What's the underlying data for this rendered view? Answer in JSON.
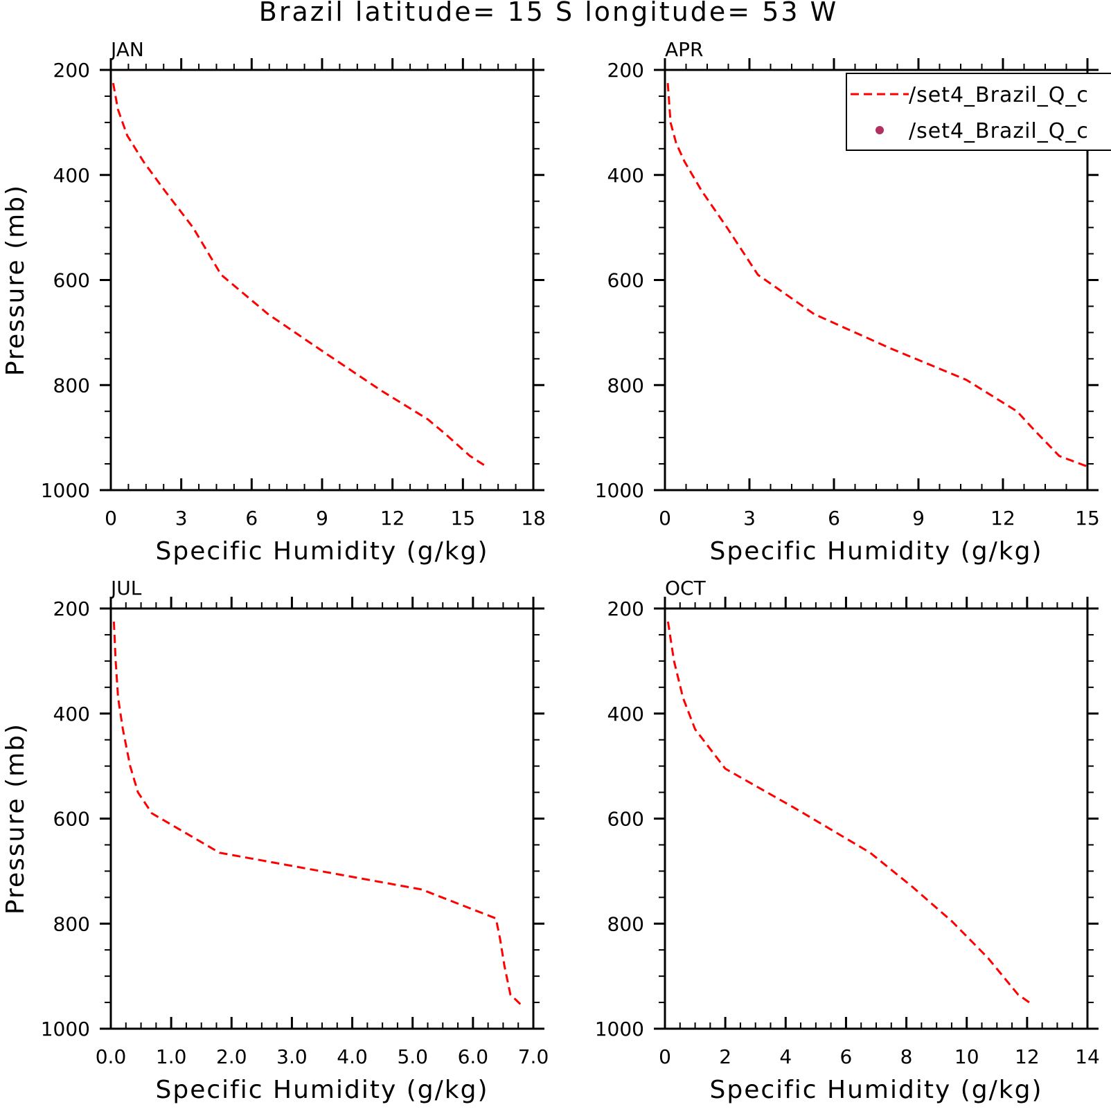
{
  "figure_title": "Brazil  latitude= 15 S longitude= 53 W",
  "legend": {
    "placement": "top-right of APR panel (clipped at right edge)",
    "entries": [
      {
        "label": "/set4_Brazil_Q_c",
        "style": "dashed-line",
        "color": "#ff0000"
      },
      {
        "label": "/set4_Brazil_Q_c",
        "style": "dot-marker",
        "color": "#b03060"
      }
    ]
  },
  "chart_data": [
    {
      "type": "line",
      "panel_label": "JAN",
      "xlabel": "Specific Humidity (g/kg)",
      "ylabel": "Pressure (mb)",
      "xlim": [
        0,
        18
      ],
      "ylim": [
        1000,
        200
      ],
      "y_inverted": true,
      "xticks": [
        "0",
        "3",
        "6",
        "9",
        "12",
        "15",
        "18"
      ],
      "yticks": [
        "200",
        "400",
        "600",
        "800",
        "1000"
      ],
      "series": [
        {
          "color": "#ff0000",
          "dash": "dashed",
          "x": [
            0.1,
            0.3,
            0.7,
            1.4,
            2.3,
            3.5,
            4.7,
            6.7,
            9.0,
            11.5,
            13.5,
            14.3,
            15.3,
            16.0
          ],
          "y": [
            225,
            275,
            325,
            375,
            430,
            500,
            590,
            665,
            735,
            810,
            865,
            895,
            935,
            955
          ]
        }
      ]
    },
    {
      "type": "line",
      "panel_label": "APR",
      "xlabel": "Specific Humidity (g/kg)",
      "ylabel": "",
      "xlim": [
        0,
        15
      ],
      "ylim": [
        1000,
        200
      ],
      "y_inverted": true,
      "xticks": [
        "0",
        "3",
        "6",
        "9",
        "12",
        "15"
      ],
      "yticks": [
        "200",
        "400",
        "600",
        "800",
        "1000"
      ],
      "series": [
        {
          "color": "#ff0000",
          "dash": "dashed",
          "x": [
            0.1,
            0.2,
            0.4,
            0.7,
            1.3,
            2.2,
            3.3,
            5.3,
            8.0,
            10.7,
            12.5,
            13.1,
            14.0,
            15.0
          ],
          "y": [
            225,
            300,
            340,
            375,
            430,
            500,
            590,
            665,
            730,
            790,
            850,
            885,
            935,
            955
          ]
        }
      ]
    },
    {
      "type": "line",
      "panel_label": "JUL",
      "xlabel": "Specific Humidity (g/kg)",
      "ylabel": "Pressure (mb)",
      "xlim": [
        0.0,
        7.0
      ],
      "ylim": [
        1000,
        200
      ],
      "y_inverted": true,
      "xticks": [
        "0.0",
        "1.0",
        "2.0",
        "3.0",
        "4.0",
        "5.0",
        "6.0",
        "7.0"
      ],
      "yticks": [
        "200",
        "400",
        "600",
        "800",
        "1000"
      ],
      "series": [
        {
          "color": "#ff0000",
          "dash": "dashed",
          "x": [
            0.05,
            0.08,
            0.12,
            0.2,
            0.32,
            0.45,
            0.68,
            1.8,
            5.15,
            6.38,
            6.45,
            6.52,
            6.62,
            6.8
          ],
          "y": [
            225,
            300,
            370,
            430,
            500,
            550,
            590,
            665,
            735,
            790,
            830,
            880,
            935,
            955
          ]
        }
      ]
    },
    {
      "type": "line",
      "panel_label": "OCT",
      "xlabel": "Specific Humidity (g/kg)",
      "ylabel": "",
      "xlim": [
        0,
        14
      ],
      "ylim": [
        1000,
        200
      ],
      "y_inverted": true,
      "xticks": [
        "0",
        "2",
        "4",
        "6",
        "8",
        "10",
        "12",
        "14"
      ],
      "yticks": [
        "200",
        "400",
        "600",
        "800",
        "1000"
      ],
      "series": [
        {
          "color": "#ff0000",
          "dash": "dashed",
          "x": [
            0.1,
            0.3,
            0.6,
            1.0,
            2.0,
            4.3,
            6.8,
            8.2,
            9.5,
            10.7,
            11.7,
            12.2
          ],
          "y": [
            225,
            300,
            370,
            430,
            505,
            580,
            665,
            730,
            795,
            865,
            935,
            955
          ]
        }
      ]
    }
  ]
}
